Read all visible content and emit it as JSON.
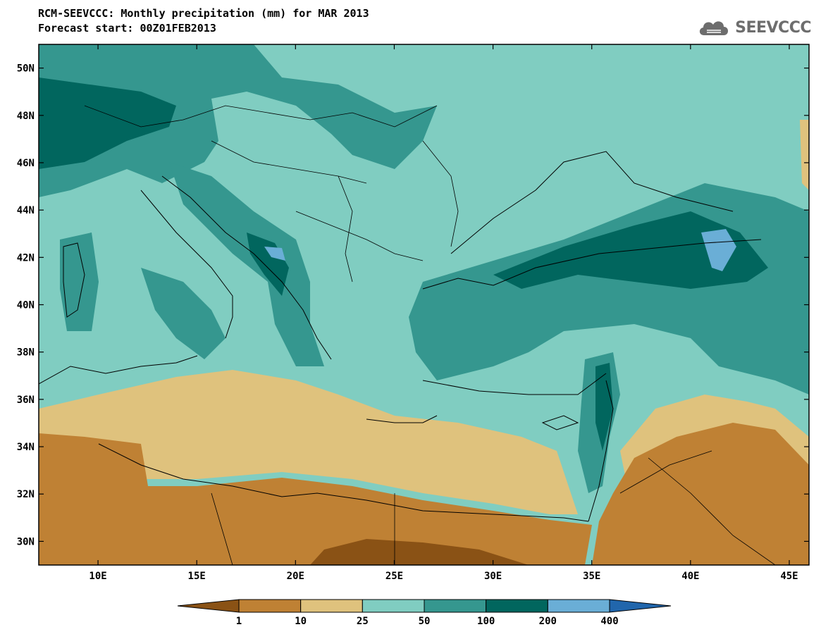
{
  "header": {
    "title": "RCM-SEEVCCC: Monthly precipitation (mm) for MAR 2013",
    "subtitle": "Forecast start: 00Z01FEB2013",
    "logo_text": "SEEVCCC",
    "logo_icon": "cloud-icon"
  },
  "map": {
    "lon_range": [
      7,
      46
    ],
    "lat_range": [
      29,
      51
    ],
    "lon_ticks": [
      {
        "value": 10,
        "label": "10E"
      },
      {
        "value": 15,
        "label": "15E"
      },
      {
        "value": 20,
        "label": "20E"
      },
      {
        "value": 25,
        "label": "25E"
      },
      {
        "value": 30,
        "label": "30E"
      },
      {
        "value": 35,
        "label": "35E"
      },
      {
        "value": 40,
        "label": "40E"
      },
      {
        "value": 45,
        "label": "45E"
      }
    ],
    "lat_ticks": [
      {
        "value": 50,
        "label": "50N"
      },
      {
        "value": 48,
        "label": "48N"
      },
      {
        "value": 46,
        "label": "46N"
      },
      {
        "value": 44,
        "label": "44N"
      },
      {
        "value": 42,
        "label": "42N"
      },
      {
        "value": 40,
        "label": "40N"
      },
      {
        "value": 38,
        "label": "38N"
      },
      {
        "value": 36,
        "label": "36N"
      },
      {
        "value": 34,
        "label": "34N"
      },
      {
        "value": 32,
        "label": "32N"
      },
      {
        "value": 30,
        "label": "30N"
      }
    ]
  },
  "colorbar": {
    "colors": [
      "#8a5215",
      "#bf8134",
      "#dfc27d",
      "#80cdc1",
      "#35978f",
      "#01665e",
      "#6aaed6",
      "#2166ac"
    ],
    "labels": [
      "1",
      "10",
      "25",
      "50",
      "100",
      "200",
      "400"
    ]
  }
}
